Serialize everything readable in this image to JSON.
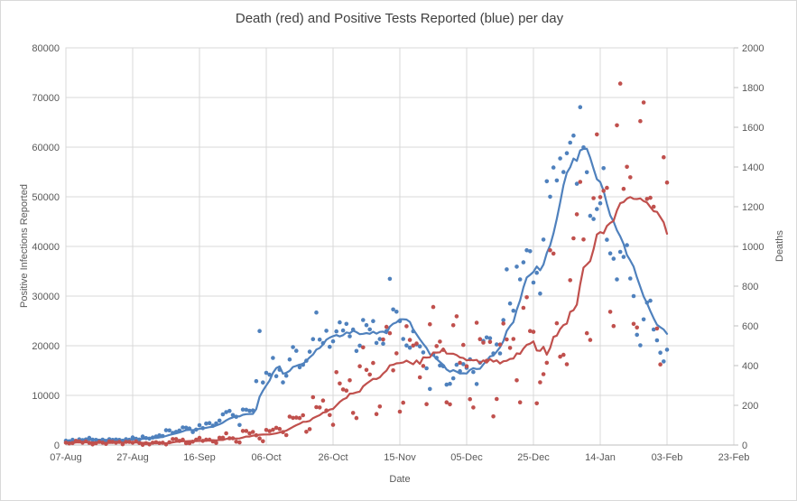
{
  "chart_data": {
    "type": "scatter",
    "title": "Death (red) and Positive Tests Reported (blue) per day",
    "legend": "none",
    "grid": true,
    "x_axis": {
      "label": "Date",
      "tick_labels": [
        "07-Aug",
        "27-Aug",
        "16-Sep",
        "06-Oct",
        "26-Oct",
        "15-Nov",
        "05-Dec",
        "25-Dec",
        "14-Jan",
        "03-Feb",
        "23-Feb"
      ],
      "days_per_tick": 20,
      "total_days": 200,
      "data_start": "07-Aug",
      "data_end": "03-Feb"
    },
    "y_left": {
      "label": "Positive Infections Reported",
      "min": 0,
      "max": 80000,
      "step": 10000
    },
    "y_right": {
      "label": "Deaths",
      "min": 0,
      "max": 2000,
      "step": 200
    },
    "style": {
      "blue": "#4F81BD",
      "red": "#C0504D",
      "grid_color": "#D9D9D9",
      "axis_color": "#BFBFBF",
      "text_color": "#595959",
      "title_color": "#404040"
    },
    "series": [
      {
        "name": "Positive Tests Reported",
        "axis": "left",
        "color": "#4F81BD",
        "marker": "dot",
        "trend": "7-day moving average line",
        "values": [
          871,
          758,
          1062,
          816,
          1148,
          1009,
          1129,
          1441,
          1077,
          1040,
          713,
          1089,
          812,
          1182,
          1033,
          1108,
          1041,
          853,
          1184,
          1048,
          1522,
          1276,
          1108,
          1715,
          1406,
          1295,
          1508,
          1735,
          1940,
          1813,
          2988,
          2948,
          2460,
          2659,
          2919,
          3539,
          3497,
          3330,
          2621,
          3105,
          3991,
          3395,
          4322,
          4422,
          3899,
          4368,
          4926,
          6178,
          6634,
          6874,
          6042,
          5693,
          4044,
          7143,
          7108,
          6914,
          6968,
          12872,
          22961,
          12594,
          14542,
          14162,
          17540,
          13864,
          15166,
          12620,
          13972,
          17234,
          19724,
          18980,
          15650,
          16171,
          16982,
          18804,
          21331,
          26688,
          21242,
          20530,
          23012,
          19790,
          20890,
          22885,
          24701,
          23065,
          24405,
          21915,
          23254,
          18950,
          20018,
          25177,
          24141,
          23287,
          24957,
          20572,
          21350,
          20412,
          22950,
          33470,
          27301,
          26860,
          24962,
          21363,
          20051,
          19609,
          22915,
          20252,
          19875,
          18662,
          15450,
          11299,
          18213,
          17555,
          16022,
          15871,
          12155,
          12330,
          13430,
          16170,
          14879,
          16298,
          15539,
          17272,
          14718,
          12282,
          16578,
          20964,
          21672,
          21502,
          18447,
          20263,
          18450,
          25161,
          35383,
          28507,
          27052,
          35928,
          33364,
          36804,
          39237,
          39036,
          32725,
          34693,
          30501,
          41385,
          53135,
          50023,
          55892,
          53285,
          57725,
          54990,
          58784,
          60916,
          62322,
          52618,
          68053,
          59937,
          54940,
          46169,
          45533,
          47525,
          48682,
          55761,
          41346,
          38598,
          37535,
          33355,
          38905,
          37892,
          40261,
          33552,
          30004,
          22195,
          20089,
          25308,
          28680,
          29079,
          23275,
          21088,
          18607,
          16840,
          19202
        ]
      },
      {
        "name": "Deaths",
        "axis": "right",
        "color": "#C0504D",
        "marker": "dot",
        "trend": "7-day moving average line",
        "values": [
          12,
          8,
          10,
          21,
          18,
          12,
          18,
          11,
          3,
          9,
          16,
          12,
          6,
          18,
          16,
          12,
          16,
          4,
          16,
          16,
          12,
          18,
          10,
          1,
          9,
          3,
          12,
          14,
          10,
          12,
          3,
          14,
          30,
          30,
          21,
          27,
          9,
          9,
          17,
          27,
          36,
          21,
          27,
          27,
          18,
          11,
          37,
          37,
          59,
          34,
          34,
          17,
          13,
          71,
          71,
          59,
          66,
          49,
          33,
          19,
          76,
          70,
          77,
          87,
          81,
          65,
          50,
          143,
          137,
          138,
          136,
          150,
          67,
          80,
          241,
          191,
          189,
          224,
          174,
          151,
          102,
          367,
          310,
          280,
          274,
          326,
          162,
          136,
          397,
          492,
          378,
          355,
          413,
          156,
          194,
          532,
          595,
          563,
          376,
          462,
          168,
          213,
          598,
          529,
          501,
          511,
          341,
          398,
          206,
          608,
          695,
          498,
          521,
          479,
          215,
          205,
          603,
          648,
          414,
          504,
          397,
          231,
          189,
          616,
          533,
          516,
          424,
          519,
          144,
          232,
          506,
          612,
          532,
          489,
          534,
          326,
          215,
          691,
          744,
          574,
          570,
          210,
          316,
          357,
          414,
          981,
          964,
          613,
          445,
          454,
          407,
          830,
          1041,
          1162,
          1325,
          1035,
          563,
          529,
          1243,
          1564,
          1248,
          1280,
          1295,
          671,
          599,
          1610,
          1820,
          1290,
          1401,
          1348,
          610,
          592,
          1631,
          1725,
          1239,
          1245,
          1200,
          587,
          406,
          1449,
          1322
        ]
      }
    ]
  }
}
